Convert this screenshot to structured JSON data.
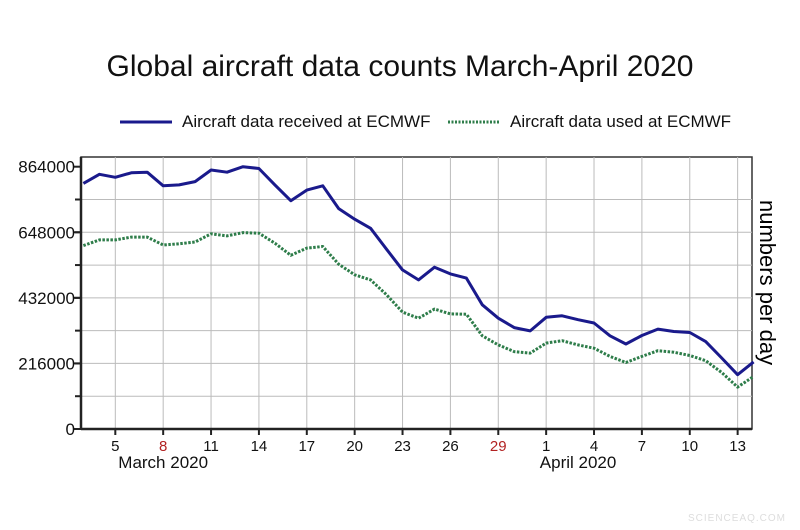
{
  "chart_data": {
    "type": "line",
    "title": "Global aircraft data counts March-April 2020",
    "ylabel": "numbers per day",
    "xlabel": "",
    "ylim": [
      0,
      864000
    ],
    "xlim": [
      "2020-03-03",
      "2020-04-14"
    ],
    "yticks": [
      "0",
      "216000",
      "432000",
      "648000",
      "864000"
    ],
    "xticks": [
      {
        "date": "2020-03-05",
        "label": "5",
        "color": "#111111"
      },
      {
        "date": "2020-03-08",
        "label": "8",
        "color": "#b22222"
      },
      {
        "date": "2020-03-11",
        "label": "11",
        "color": "#111111"
      },
      {
        "date": "2020-03-14",
        "label": "14",
        "color": "#111111"
      },
      {
        "date": "2020-03-17",
        "label": "17",
        "color": "#111111"
      },
      {
        "date": "2020-03-20",
        "label": "20",
        "color": "#111111"
      },
      {
        "date": "2020-03-23",
        "label": "23",
        "color": "#111111"
      },
      {
        "date": "2020-03-26",
        "label": "26",
        "color": "#111111"
      },
      {
        "date": "2020-03-29",
        "label": "29",
        "color": "#b22222"
      },
      {
        "date": "2020-04-01",
        "label": "1",
        "color": "#111111"
      },
      {
        "date": "2020-04-04",
        "label": "4",
        "color": "#111111"
      },
      {
        "date": "2020-04-07",
        "label": "7",
        "color": "#111111"
      },
      {
        "date": "2020-04-10",
        "label": "10",
        "color": "#111111"
      },
      {
        "date": "2020-04-13",
        "label": "13",
        "color": "#111111"
      }
    ],
    "month_labels": [
      {
        "date": "2020-03-08",
        "label": "March 2020"
      },
      {
        "date": "2020-04-03",
        "label": "April 2020"
      }
    ],
    "grid": true,
    "legend_position": "top",
    "x": [
      "2020-03-03",
      "2020-03-04",
      "2020-03-05",
      "2020-03-06",
      "2020-03-07",
      "2020-03-08",
      "2020-03-09",
      "2020-03-10",
      "2020-03-11",
      "2020-03-12",
      "2020-03-13",
      "2020-03-14",
      "2020-03-15",
      "2020-03-16",
      "2020-03-17",
      "2020-03-18",
      "2020-03-19",
      "2020-03-20",
      "2020-03-21",
      "2020-03-22",
      "2020-03-23",
      "2020-03-24",
      "2020-03-25",
      "2020-03-26",
      "2020-03-27",
      "2020-03-28",
      "2020-03-29",
      "2020-03-30",
      "2020-03-31",
      "2020-04-01",
      "2020-04-02",
      "2020-04-03",
      "2020-04-04",
      "2020-04-05",
      "2020-04-06",
      "2020-04-07",
      "2020-04-08",
      "2020-04-09",
      "2020-04-10",
      "2020-04-11",
      "2020-04-12",
      "2020-04-13",
      "2020-04-14"
    ],
    "series": [
      {
        "name": "Aircraft data received at ECMWF",
        "color": "#1a1a8c",
        "style": "solid",
        "values": [
          809000,
          839000,
          829000,
          844000,
          846000,
          801000,
          804000,
          815000,
          853000,
          846000,
          864000,
          858000,
          804000,
          752000,
          787000,
          801000,
          726000,
          691000,
          661000,
          592000,
          524000,
          491000,
          533000,
          511000,
          497000,
          409000,
          365000,
          334000,
          323000,
          368000,
          373000,
          360000,
          349000,
          307000,
          280000,
          308000,
          329000,
          321000,
          318000,
          288000,
          234000,
          179000,
          221000
        ]
      },
      {
        "name": "Aircraft data used at ECMWF",
        "color": "#2e7d4a",
        "style": "dotted",
        "values": [
          604000,
          623000,
          623000,
          632000,
          632000,
          606000,
          610000,
          616000,
          643000,
          636000,
          647000,
          645000,
          612000,
          572000,
          596000,
          601000,
          543000,
          508000,
          491000,
          442000,
          385000,
          365000,
          395000,
          379000,
          378000,
          307000,
          277000,
          255000,
          250000,
          283000,
          291000,
          277000,
          266000,
          239000,
          219000,
          239000,
          258000,
          253000,
          242000,
          225000,
          186000,
          138000,
          173000
        ]
      }
    ]
  },
  "watermark": "SCIENCEAQ.COM"
}
